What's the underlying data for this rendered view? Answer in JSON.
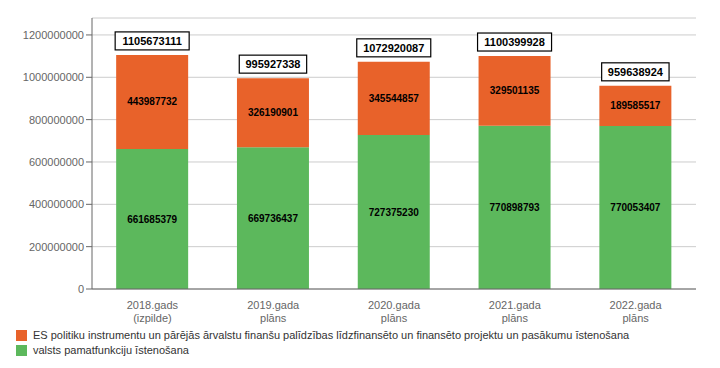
{
  "chart_data": {
    "type": "bar",
    "stacked": true,
    "data_labels": true,
    "grid": true,
    "legend": "bottom left",
    "categories": [
      "2018.gads\n(izpilde)",
      "2019.gada\nplāns",
      "2020.gada\nplāns",
      "2021.gada\nplāns",
      "2022.gada\nplāns"
    ],
    "series": [
      {
        "name": "valsts pamatfunkciju īstenošana",
        "color": "#5cb85c",
        "values": [
          661685379,
          669736437,
          727375230,
          770898793,
          770053407
        ]
      },
      {
        "name": "ES politiku instrumentu un pārējās ārvalstu finanšu palīdzības līdzfinansēto un finansēto projektu un pasākumu īstenošana",
        "color": "#e8622a",
        "values": [
          443987732,
          326190901,
          345544857,
          329501135,
          189585517
        ]
      }
    ],
    "totals": [
      1105673111,
      995927338,
      1072920087,
      1100399928,
      959638924
    ],
    "ylim": [
      0,
      1280000000
    ],
    "yticks": [
      0,
      200000000,
      400000000,
      600000000,
      800000000,
      1000000000,
      1200000000
    ]
  }
}
